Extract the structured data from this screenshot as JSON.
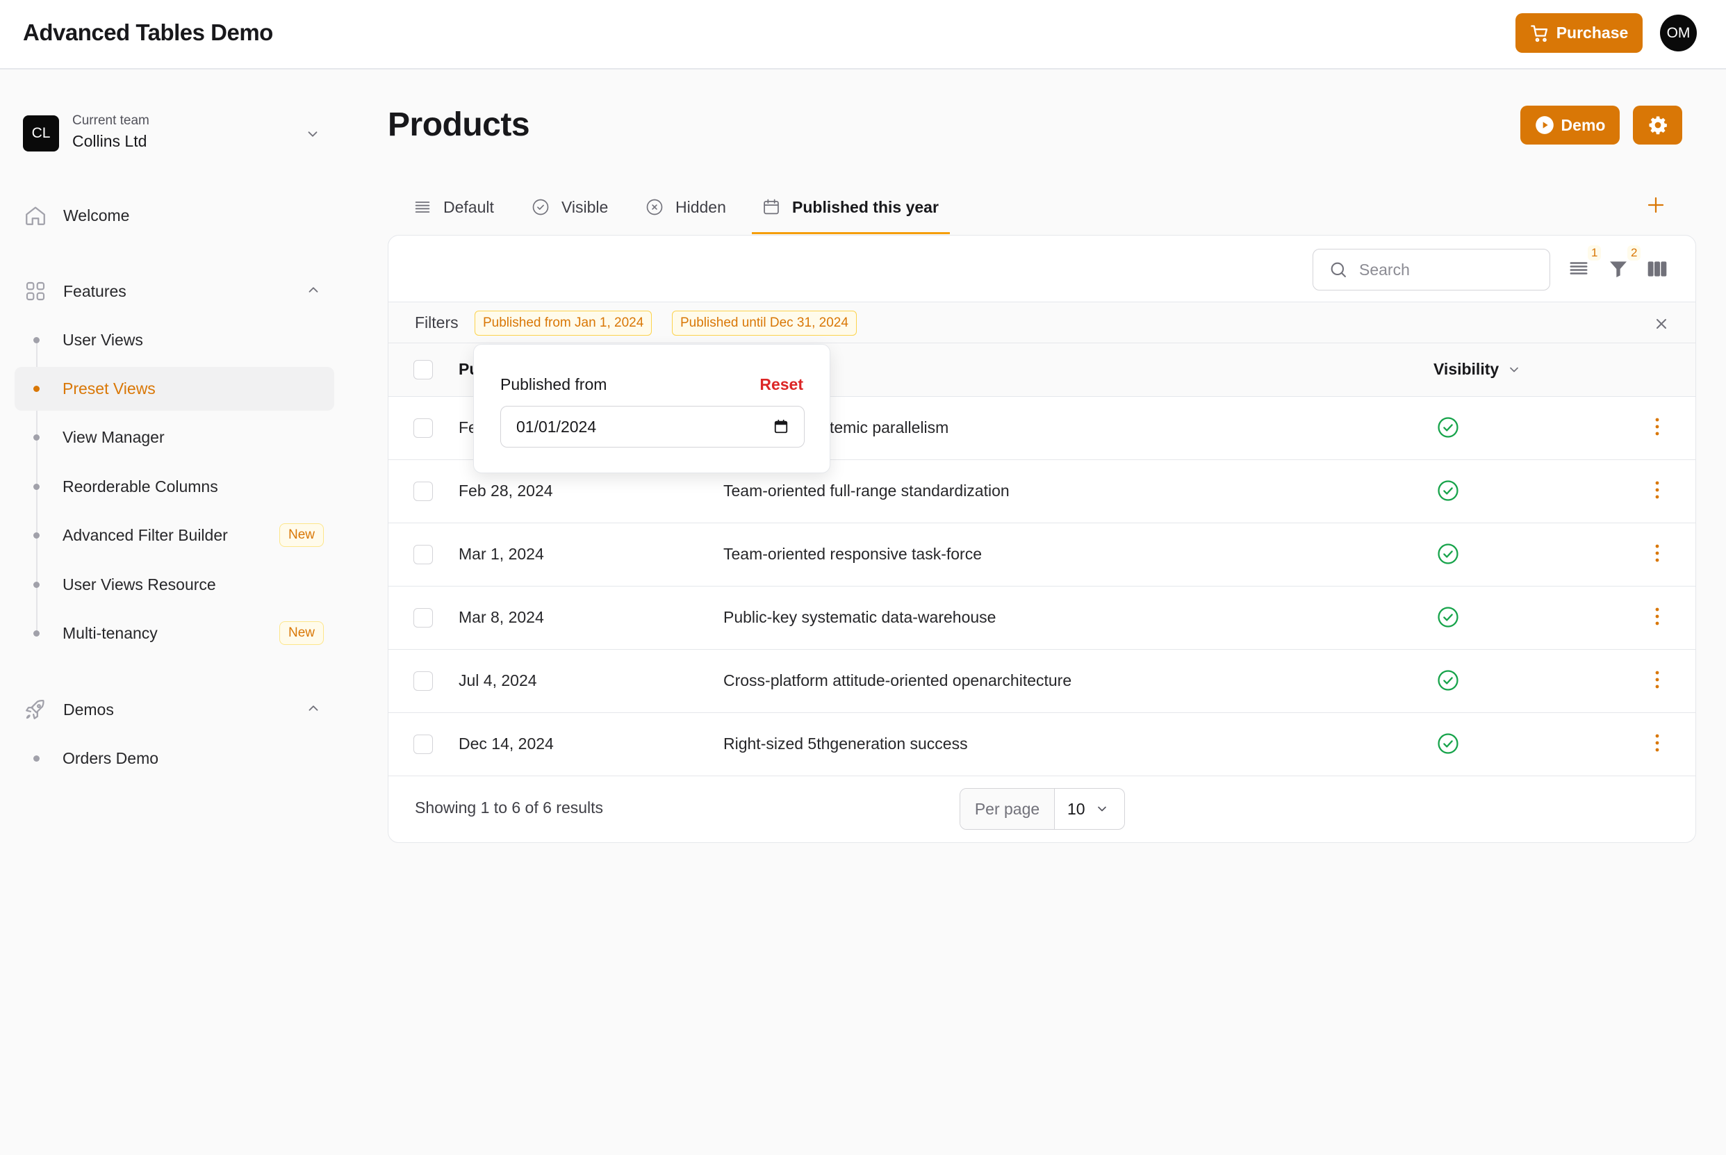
{
  "app": {
    "title": "Advanced Tables Demo"
  },
  "header": {
    "purchase_label": "Purchase",
    "avatar_initials": "OM"
  },
  "team": {
    "badge": "CL",
    "caption": "Current team",
    "name": "Collins Ltd"
  },
  "sidebar": {
    "welcome": "Welcome",
    "features_label": "Features",
    "feature_items": [
      {
        "label": "User Views"
      },
      {
        "label": "Preset Views"
      },
      {
        "label": "View Manager"
      },
      {
        "label": "Reorderable Columns"
      },
      {
        "label": "Advanced Filter Builder",
        "badge": "New"
      },
      {
        "label": "User Views Resource"
      },
      {
        "label": "Multi-tenancy",
        "badge": "New"
      }
    ],
    "demos_label": "Demos",
    "demo_items": [
      {
        "label": "Orders Demo"
      }
    ]
  },
  "page": {
    "title": "Products",
    "demo_label": "Demo"
  },
  "tabs": [
    {
      "label": "Default"
    },
    {
      "label": "Visible"
    },
    {
      "label": "Hidden"
    },
    {
      "label": "Published this year"
    }
  ],
  "toolbar": {
    "search_placeholder": "Search",
    "list_badge": "1",
    "filter_badge": "2"
  },
  "filters": {
    "label": "Filters",
    "chips": [
      "Published from Jan 1, 2024",
      "Published until Dec 31, 2024"
    ]
  },
  "table": {
    "col_published_partial": "Pu",
    "col_visibility": "Visibility",
    "rows": [
      {
        "date": "Fe",
        "name": "ystemic parallelism"
      },
      {
        "date": "Feb 28, 2024",
        "name": "Team-oriented full-range standardization"
      },
      {
        "date": "Mar 1, 2024",
        "name": "Team-oriented responsive task-force"
      },
      {
        "date": "Mar 8, 2024",
        "name": "Public-key systematic data-warehouse"
      },
      {
        "date": "Jul 4, 2024",
        "name": "Cross-platform attitude-oriented openarchitecture"
      },
      {
        "date": "Dec 14, 2024",
        "name": "Right-sized 5thgeneration success"
      }
    ],
    "footer": "Showing 1 to 6 of 6 results",
    "per_page_label": "Per page",
    "per_page_value": "10"
  },
  "popover": {
    "label": "Published from",
    "reset": "Reset",
    "value": "01/01/2024"
  },
  "colors": {
    "accent": "#d97706",
    "success": "#16a34a",
    "danger": "#dc2626"
  }
}
